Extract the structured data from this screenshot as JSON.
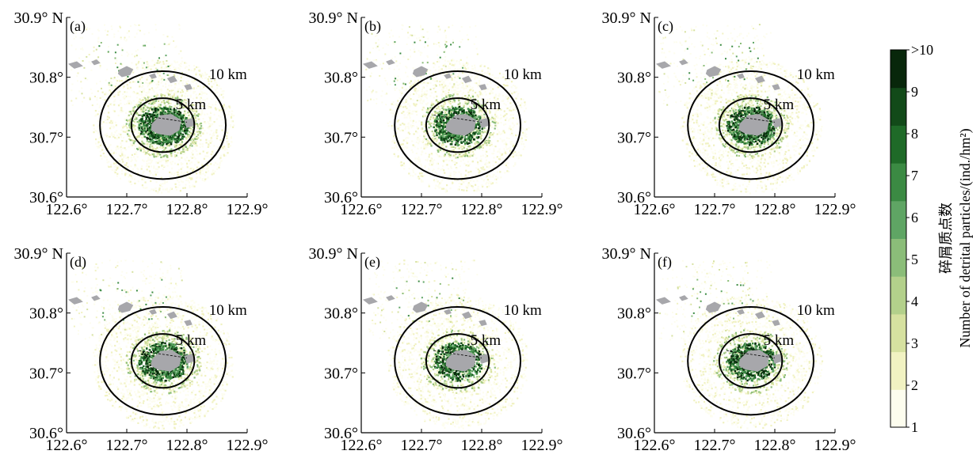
{
  "chart_data": {
    "type": "heatmap",
    "panels": [
      {
        "id": "a",
        "label": "(a)",
        "intensity": 1.0
      },
      {
        "id": "b",
        "label": "(b)",
        "intensity": 0.82
      },
      {
        "id": "c",
        "label": "(c)",
        "intensity": 0.86
      },
      {
        "id": "d",
        "label": "(d)",
        "intensity": 0.9
      },
      {
        "id": "e",
        "label": "(e)",
        "intensity": 0.72
      },
      {
        "id": "f",
        "label": "(f)",
        "intensity": 0.78
      }
    ],
    "x_ticks": [
      {
        "value": 122.6,
        "label": "122.6°"
      },
      {
        "value": 122.7,
        "label": "122.7°"
      },
      {
        "value": 122.8,
        "label": "122.8°"
      },
      {
        "value": 122.9,
        "label": "122.9°"
      }
    ],
    "y_ticks": [
      {
        "value": 30.6,
        "label": "30.6°"
      },
      {
        "value": 30.7,
        "label": "30.7°"
      },
      {
        "value": 30.8,
        "label": "30.8°"
      },
      {
        "value": 30.9,
        "label": "30.9° N"
      }
    ],
    "xlim": [
      122.6,
      122.9
    ],
    "ylim": [
      30.6,
      30.9
    ],
    "center": {
      "lon": 122.76,
      "lat": 30.72
    },
    "rings": [
      {
        "radius_km": 5,
        "label": "5 km"
      },
      {
        "radius_km": 10,
        "label": "10 km"
      }
    ],
    "colorbar": {
      "title": "碎屑质点数",
      "subtitle": "Number of detrital particles/(ind./hm²)",
      "ticks": [
        "1",
        "2",
        "3",
        "4",
        "5",
        "6",
        "7",
        "8",
        "9",
        ">10"
      ],
      "min": 1,
      "max": 10,
      "colors": [
        "#fdfdee",
        "#f1f2c2",
        "#d6e1a0",
        "#b3d08b",
        "#8bbd79",
        "#5fa564",
        "#3b8a43",
        "#1f6a28",
        "#124a19",
        "#08270b"
      ]
    },
    "colors": {
      "land": "#a7a7ab",
      "ring": "#000000",
      "axis": "#000000"
    }
  }
}
